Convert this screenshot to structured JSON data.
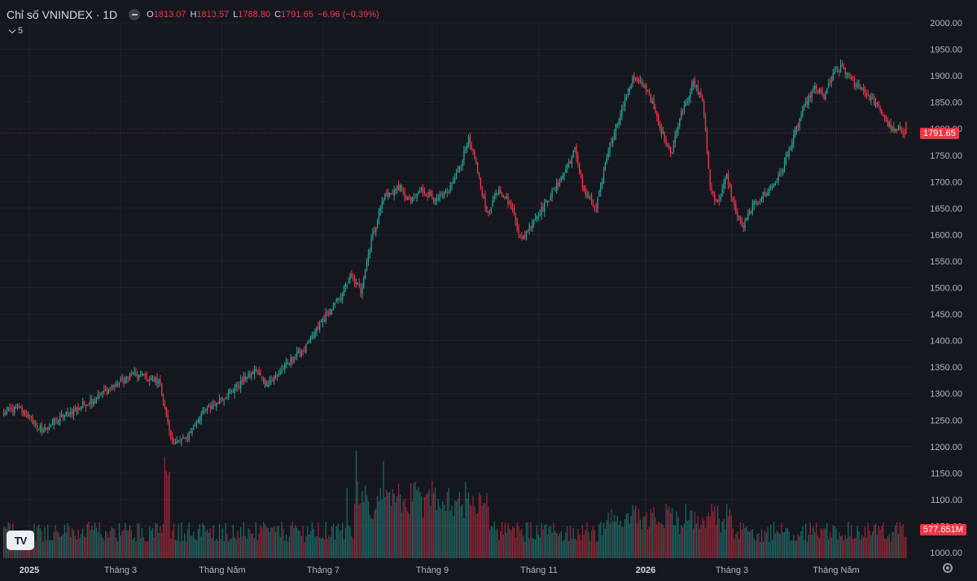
{
  "legend": {
    "symbol": "Chỉ số VNINDEX · 1D",
    "o_label": "O",
    "o_value": "1813.07",
    "h_label": "H",
    "h_value": "1813.57",
    "l_label": "L",
    "l_value": "1788.80",
    "c_label": "C",
    "c_value": "1791.65",
    "change": "−6.96 (−0.39%)"
  },
  "indicator_toggle": {
    "count": "5"
  },
  "badges": {
    "last_price": "1791.65",
    "last_volume": "577.651M"
  },
  "logo_text": "TV",
  "colors": {
    "up": "#26a69a",
    "down": "#f23645",
    "background": "#15171f",
    "grid": "#20232c",
    "axis_text": "#b2b5be"
  },
  "chart_data": {
    "type": "candlestick",
    "y_axis": {
      "range": [
        1000,
        2000
      ],
      "ticks": [
        "1000.00",
        "1050.00",
        "1100.00",
        "1150.00",
        "1200.00",
        "1250.00",
        "1300.00",
        "1350.00",
        "1400.00",
        "1450.00",
        "1500.00",
        "1550.00",
        "1600.00",
        "1650.00",
        "1700.00",
        "1750.00",
        "1800.00",
        "1850.00",
        "1900.00",
        "1950.00",
        "2000.00"
      ]
    },
    "x_axis": {
      "labels": [
        "2025",
        "Tháng 3",
        "Tháng Năm",
        "Tháng 7",
        "Tháng 9",
        "Tháng 11",
        "2026",
        "Tháng 3",
        "Tháng Năm"
      ],
      "bold": [
        "2025",
        "2026"
      ]
    },
    "last": {
      "open": 1813.07,
      "high": 1813.57,
      "low": 1788.8,
      "close": 1791.65
    },
    "trend_path": [
      [
        0,
        1262
      ],
      [
        10,
        1275
      ],
      [
        20,
        1245
      ],
      [
        25,
        1230
      ],
      [
        35,
        1250
      ],
      [
        50,
        1275
      ],
      [
        60,
        1290
      ],
      [
        75,
        1320
      ],
      [
        85,
        1335
      ],
      [
        95,
        1332
      ],
      [
        103,
        1320
      ],
      [
        106,
        1270
      ],
      [
        109,
        1225
      ],
      [
        112,
        1205
      ],
      [
        120,
        1215
      ],
      [
        130,
        1260
      ],
      [
        140,
        1285
      ],
      [
        150,
        1305
      ],
      [
        160,
        1330
      ],
      [
        166,
        1345
      ],
      [
        172,
        1318
      ],
      [
        180,
        1335
      ],
      [
        190,
        1365
      ],
      [
        200,
        1390
      ],
      [
        210,
        1440
      ],
      [
        220,
        1475
      ],
      [
        228,
        1520
      ],
      [
        235,
        1495
      ],
      [
        242,
        1590
      ],
      [
        250,
        1670
      ],
      [
        260,
        1690
      ],
      [
        268,
        1660
      ],
      [
        275,
        1685
      ],
      [
        285,
        1665
      ],
      [
        292,
        1678
      ],
      [
        300,
        1725
      ],
      [
        306,
        1780
      ],
      [
        312,
        1720
      ],
      [
        318,
        1640
      ],
      [
        326,
        1688
      ],
      [
        334,
        1655
      ],
      [
        341,
        1590
      ],
      [
        348,
        1625
      ],
      [
        356,
        1655
      ],
      [
        366,
        1700
      ],
      [
        376,
        1760
      ],
      [
        382,
        1680
      ],
      [
        390,
        1650
      ],
      [
        398,
        1760
      ],
      [
        406,
        1830
      ],
      [
        414,
        1895
      ],
      [
        424,
        1875
      ],
      [
        432,
        1800
      ],
      [
        440,
        1755
      ],
      [
        445,
        1825
      ],
      [
        454,
        1885
      ],
      [
        460,
        1855
      ],
      [
        465,
        1690
      ],
      [
        470,
        1660
      ],
      [
        476,
        1710
      ],
      [
        482,
        1640
      ],
      [
        487,
        1615
      ],
      [
        494,
        1660
      ],
      [
        502,
        1680
      ],
      [
        510,
        1705
      ],
      [
        518,
        1765
      ],
      [
        526,
        1835
      ],
      [
        534,
        1878
      ],
      [
        540,
        1860
      ],
      [
        546,
        1900
      ],
      [
        552,
        1918
      ],
      [
        558,
        1890
      ],
      [
        564,
        1880
      ],
      [
        570,
        1860
      ],
      [
        576,
        1840
      ],
      [
        582,
        1810
      ],
      [
        586,
        1795
      ],
      [
        590,
        1800
      ],
      [
        594,
        1792
      ]
    ],
    "volume_note": "Volume histogram at bottom, colored by candle direction"
  }
}
